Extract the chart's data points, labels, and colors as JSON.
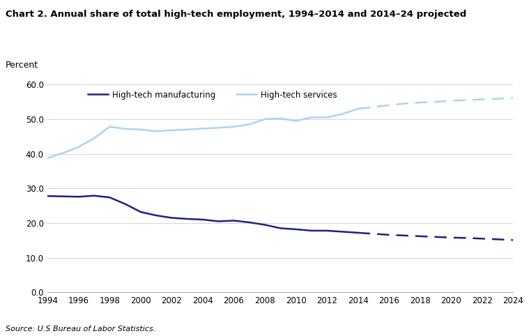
{
  "title": "Chart 2. Annual share of total high-tech employment, 1994–2014 and 2014–24 projected",
  "ylabel": "Percent",
  "source": "Source: U.S Bureau of Labor Statistics.",
  "ylim": [
    0.0,
    65.0
  ],
  "yticks": [
    0.0,
    10.0,
    20.0,
    30.0,
    40.0,
    50.0,
    60.0
  ],
  "xticks": [
    1994,
    1996,
    1998,
    2000,
    2002,
    2004,
    2006,
    2008,
    2010,
    2012,
    2014,
    2016,
    2018,
    2020,
    2022,
    2024
  ],
  "mfg_solid_x": [
    1994,
    1995,
    1996,
    1997,
    1998,
    1999,
    2000,
    2001,
    2002,
    2003,
    2004,
    2005,
    2006,
    2007,
    2008,
    2009,
    2010,
    2011,
    2012,
    2013,
    2014
  ],
  "mfg_solid_y": [
    27.8,
    27.7,
    27.6,
    27.9,
    27.4,
    25.5,
    23.2,
    22.2,
    21.5,
    21.2,
    21.0,
    20.5,
    20.7,
    20.2,
    19.5,
    18.5,
    18.2,
    17.8,
    17.8,
    17.5,
    17.2
  ],
  "mfg_dashed_x": [
    2014,
    2015,
    2016,
    2017,
    2018,
    2019,
    2020,
    2021,
    2022,
    2023,
    2024
  ],
  "mfg_dashed_y": [
    17.2,
    16.9,
    16.6,
    16.4,
    16.2,
    16.0,
    15.8,
    15.7,
    15.5,
    15.3,
    15.1
  ],
  "svc_solid_x": [
    1994,
    1995,
    1996,
    1997,
    1998,
    1999,
    2000,
    2001,
    2002,
    2003,
    2004,
    2005,
    2006,
    2007,
    2008,
    2009,
    2010,
    2011,
    2012,
    2013,
    2014
  ],
  "svc_solid_y": [
    38.8,
    40.2,
    42.0,
    44.5,
    47.8,
    47.2,
    47.0,
    46.5,
    46.8,
    47.0,
    47.3,
    47.5,
    47.8,
    48.5,
    50.0,
    50.2,
    49.5,
    50.5,
    50.5,
    51.5,
    53.0
  ],
  "svc_dashed_x": [
    2014,
    2015,
    2016,
    2017,
    2018,
    2019,
    2020,
    2021,
    2022,
    2023,
    2024
  ],
  "svc_dashed_y": [
    53.0,
    53.5,
    54.0,
    54.5,
    54.8,
    55.0,
    55.3,
    55.5,
    55.7,
    55.9,
    56.2
  ],
  "mfg_color": "#1a237e",
  "svc_color": "#aad4f0",
  "legend_labels": [
    "High-tech manufacturing",
    "High-tech services"
  ],
  "background_color": "#ffffff"
}
